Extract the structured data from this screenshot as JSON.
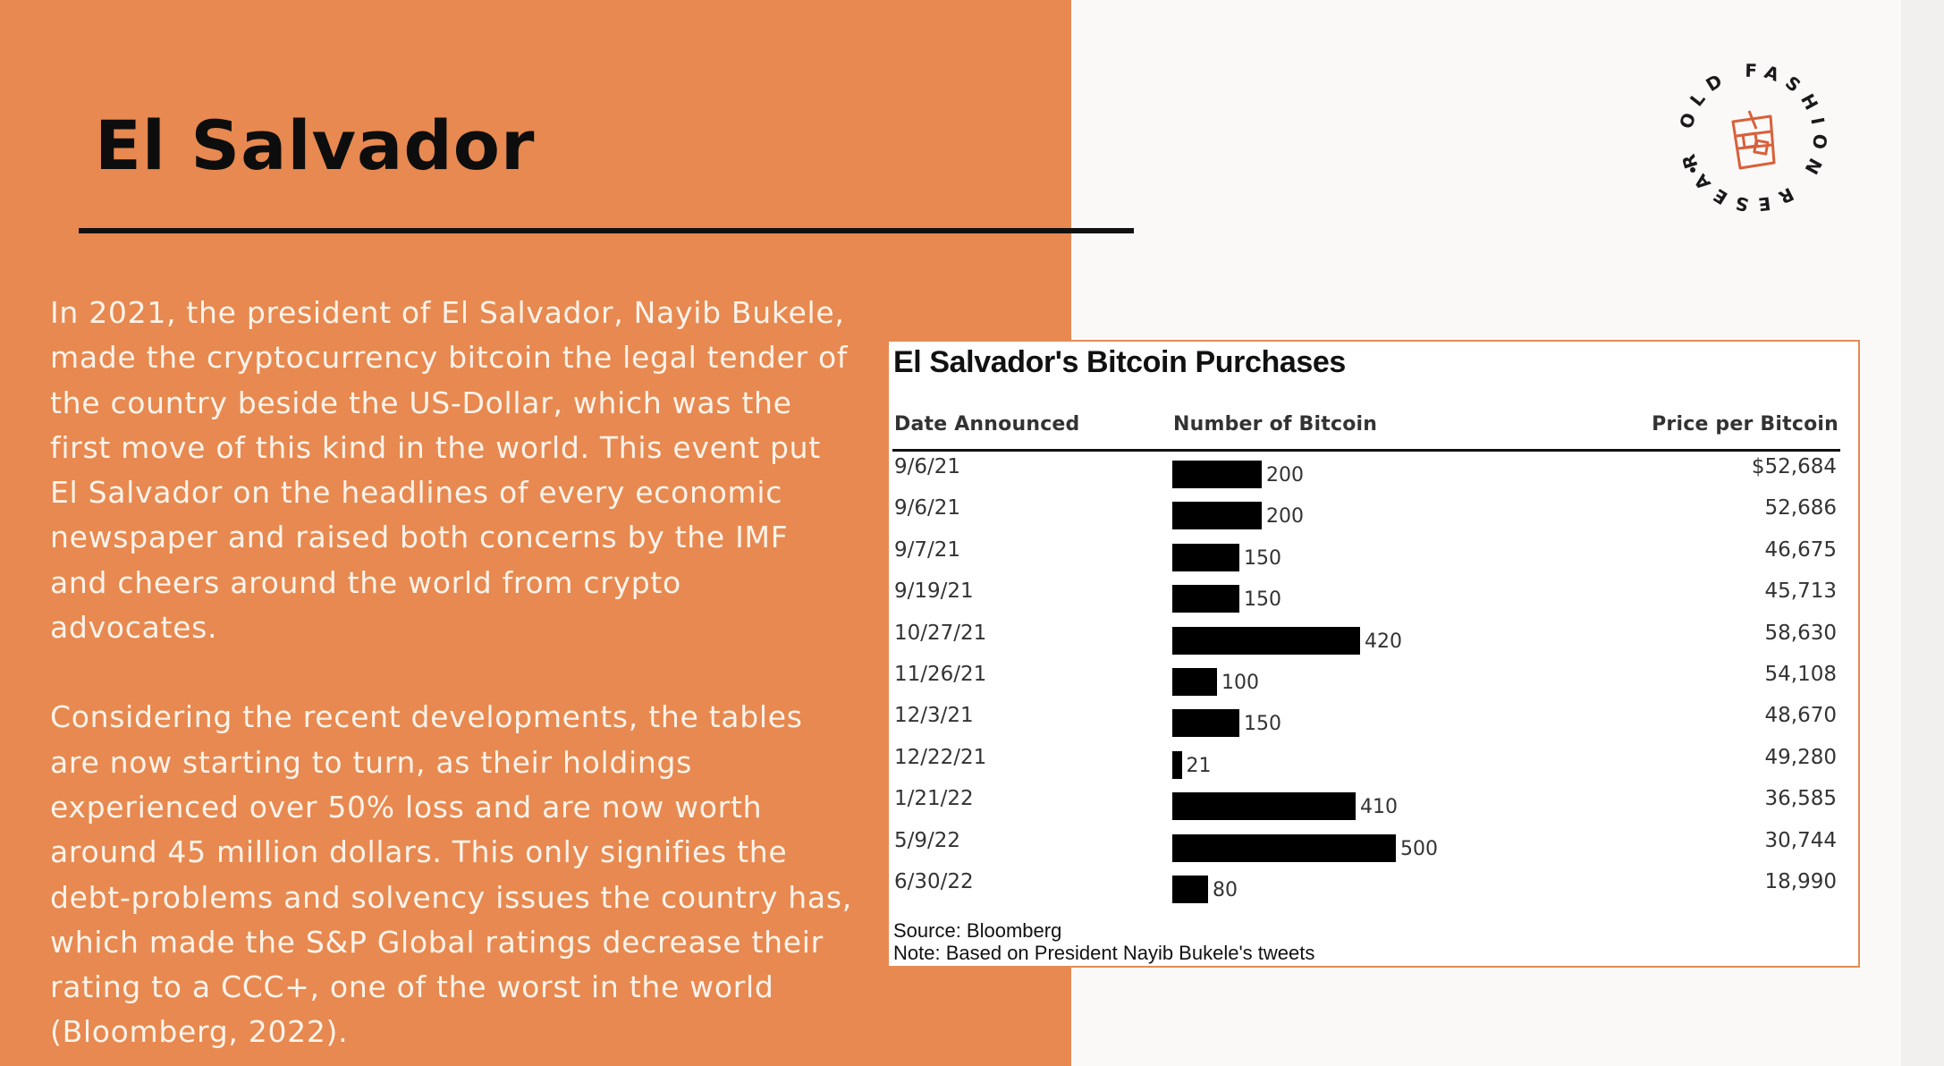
{
  "page": {
    "title": "El Salvador",
    "paragraphs": [
      "In 2021, the president of El Salvador, Nayib Bukele, made the cryptocurrency bitcoin the legal tender of the country beside the US-Dollar, which was the first move of this kind in the world. This event put El Salvador on the headlines of every economic newspaper and raised both concerns by the IMF and cheers around the world from crypto advocates.",
      "Considering the recent developments, the tables are now starting to turn, as their holdings experienced over 50% loss and are now worth around 45 million dollars. This only signifies the debt-problems and solvency issues the country has, which made the S&P Global ratings decrease their rating to a CCC+, one of the worst in the world (Bloomberg, 2022)."
    ],
    "logo_text": "OLD FASHION RESEARCH"
  },
  "colors": {
    "panel": "#e78950",
    "accent": "#e58a54",
    "bar": "#000000"
  },
  "chart_data": {
    "type": "bar",
    "orientation": "horizontal",
    "title": "El Salvador's Bitcoin Purchases",
    "columns": [
      "Date Announced",
      "Number of Bitcoin",
      "Price per Bitcoin"
    ],
    "categories": [
      "9/6/21",
      "9/6/21",
      "9/7/21",
      "9/19/21",
      "10/27/21",
      "11/26/21",
      "12/3/21",
      "12/22/21",
      "1/21/22",
      "5/9/22",
      "6/30/22"
    ],
    "values": [
      200,
      200,
      150,
      150,
      420,
      100,
      150,
      21,
      410,
      500,
      80
    ],
    "prices": [
      "$52,684",
      "52,686",
      "46,675",
      "45,713",
      "58,630",
      "54,108",
      "48,670",
      "49,280",
      "36,585",
      "30,744",
      "18,990"
    ],
    "xlim": [
      0,
      500
    ],
    "source": "Source: Bloomberg",
    "note": "Note: Based on President Nayib Bukele's tweets"
  }
}
